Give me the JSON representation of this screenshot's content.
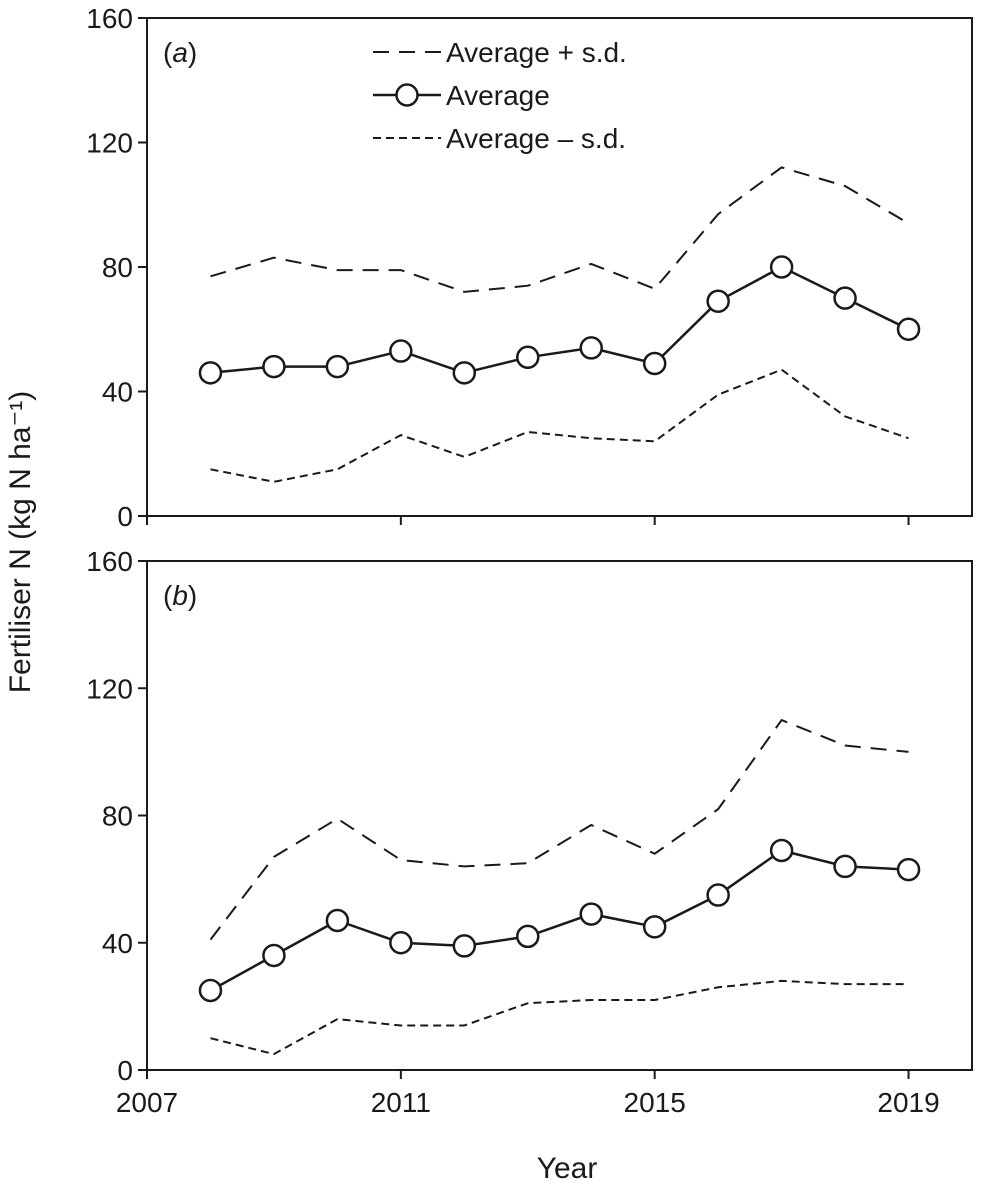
{
  "chart_data": [
    {
      "type": "line",
      "panel_label": "a",
      "x": [
        2008,
        2009,
        2010,
        2011,
        2012,
        2013,
        2014,
        2015,
        2016,
        2017,
        2018,
        2019
      ],
      "series": [
        {
          "name": "Average + s.d.",
          "style": "long-dash",
          "values": [
            77,
            83,
            79,
            79,
            72,
            74,
            81,
            73,
            97,
            112,
            106,
            94
          ]
        },
        {
          "name": "Average",
          "style": "solid-circle-markers",
          "values": [
            46,
            48,
            48,
            53,
            46,
            51,
            54,
            49,
            69,
            80,
            70,
            60
          ]
        },
        {
          "name": "Average – s.d.",
          "style": "short-dash",
          "values": [
            15,
            11,
            15,
            26,
            19,
            27,
            25,
            24,
            39,
            47,
            32,
            25
          ]
        }
      ],
      "ylim": [
        0,
        160
      ],
      "yticks": [
        "0",
        "40",
        "80",
        "120",
        "160"
      ],
      "xlim": [
        2007,
        2020
      ],
      "xticks": [
        "2007",
        "2011",
        "2015",
        "2019"
      ]
    },
    {
      "type": "line",
      "panel_label": "b",
      "x": [
        2008,
        2009,
        2010,
        2011,
        2012,
        2013,
        2014,
        2015,
        2016,
        2017,
        2018,
        2019
      ],
      "series": [
        {
          "name": "Average + s.d.",
          "style": "long-dash",
          "values": [
            41,
            67,
            79,
            66,
            64,
            65,
            77,
            68,
            82,
            110,
            102,
            100
          ]
        },
        {
          "name": "Average",
          "style": "solid-circle-markers",
          "values": [
            25,
            36,
            47,
            40,
            39,
            42,
            49,
            45,
            55,
            69,
            64,
            63
          ]
        },
        {
          "name": "Average – s.d.",
          "style": "short-dash",
          "values": [
            10,
            5,
            16,
            14,
            14,
            21,
            22,
            22,
            26,
            28,
            27,
            27
          ]
        }
      ],
      "ylim": [
        0,
        160
      ],
      "yticks": [
        "0",
        "40",
        "80",
        "120",
        "160"
      ],
      "xlim": [
        2007,
        2020
      ],
      "xticks": [
        "2007",
        "2011",
        "2015",
        "2019"
      ]
    }
  ],
  "xlabel": "Year",
  "ylabel": "Fertiliser N (kg N ha⁻¹)",
  "legend": [
    "Average + s.d.",
    "Average",
    "Average – s.d."
  ],
  "colors": {
    "line": "#1a1a1a",
    "marker_fill": "#ffffff",
    "background": "#ffffff"
  }
}
